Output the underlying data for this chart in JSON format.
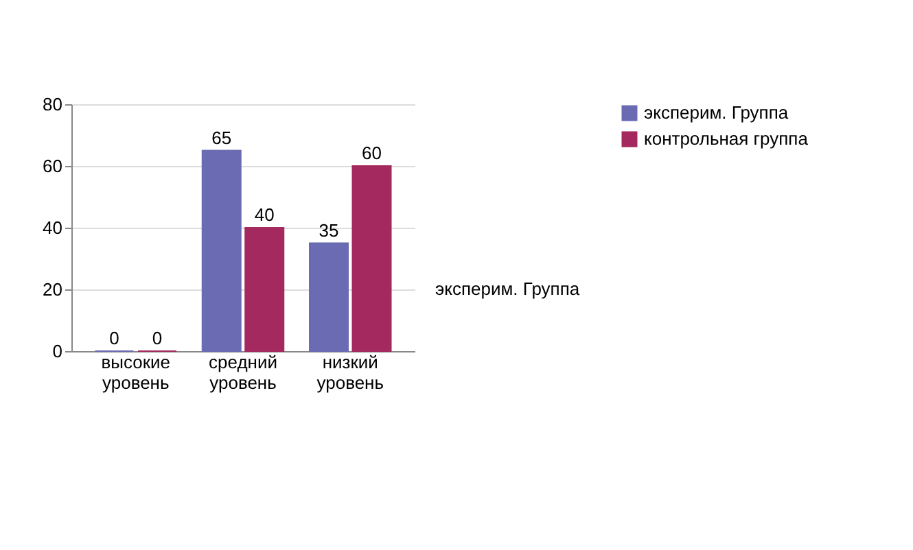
{
  "chart_data": {
    "type": "bar",
    "categories": [
      "высокие уровень",
      "средний уровень",
      "низкий уровень"
    ],
    "series": [
      {
        "name": "эксперим. Группа",
        "color": "#6b6bb3",
        "values": [
          0,
          65,
          35
        ]
      },
      {
        "name": "контрольная группа",
        "color": "#a3295e",
        "values": [
          0,
          40,
          60
        ]
      }
    ],
    "ylim": [
      0,
      80
    ],
    "yticks": [
      0,
      20,
      40,
      60,
      80
    ],
    "grid": "y",
    "legend": "right",
    "data_labels": true,
    "annotations": [
      "эксперим. Группа"
    ]
  }
}
